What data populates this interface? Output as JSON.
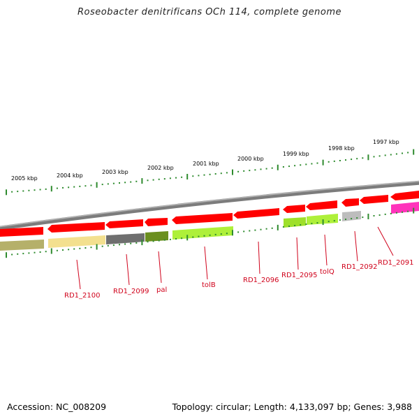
{
  "title": "Roseobacter denitrificans OCh 114, complete genome",
  "footer": {
    "accession": "Accession: NC_008209",
    "summary": "Topology: circular; Length: 4,133,097 bp; Genes: 3,988"
  },
  "kbp_labels": [
    "2005 kbp",
    "2004 kbp",
    "2003 kbp",
    "2002 kbp",
    "2001 kbp",
    "2000 kbp",
    "1999 kbp",
    "1998 kbp",
    "1997 kbp"
  ],
  "gene_labels": [
    "RD1_2100",
    "RD1_2099",
    "pal",
    "tolB",
    "RD1_2096",
    "RD1_2095",
    "tolQ",
    "RD1_2092",
    "RD1_2091"
  ],
  "colors": {
    "backbone": "#8a8a8a",
    "cds_arrow": "#ff0000",
    "tick": "#2e8b2e",
    "label": "#d0021b"
  },
  "feature_colors": [
    "#b5b06a",
    "#f3e08f",
    "#6f6f6f",
    "#6b8f1f",
    "#aef03a",
    "#9ee02a",
    "#bdbdbd",
    "#ff33bb"
  ]
}
